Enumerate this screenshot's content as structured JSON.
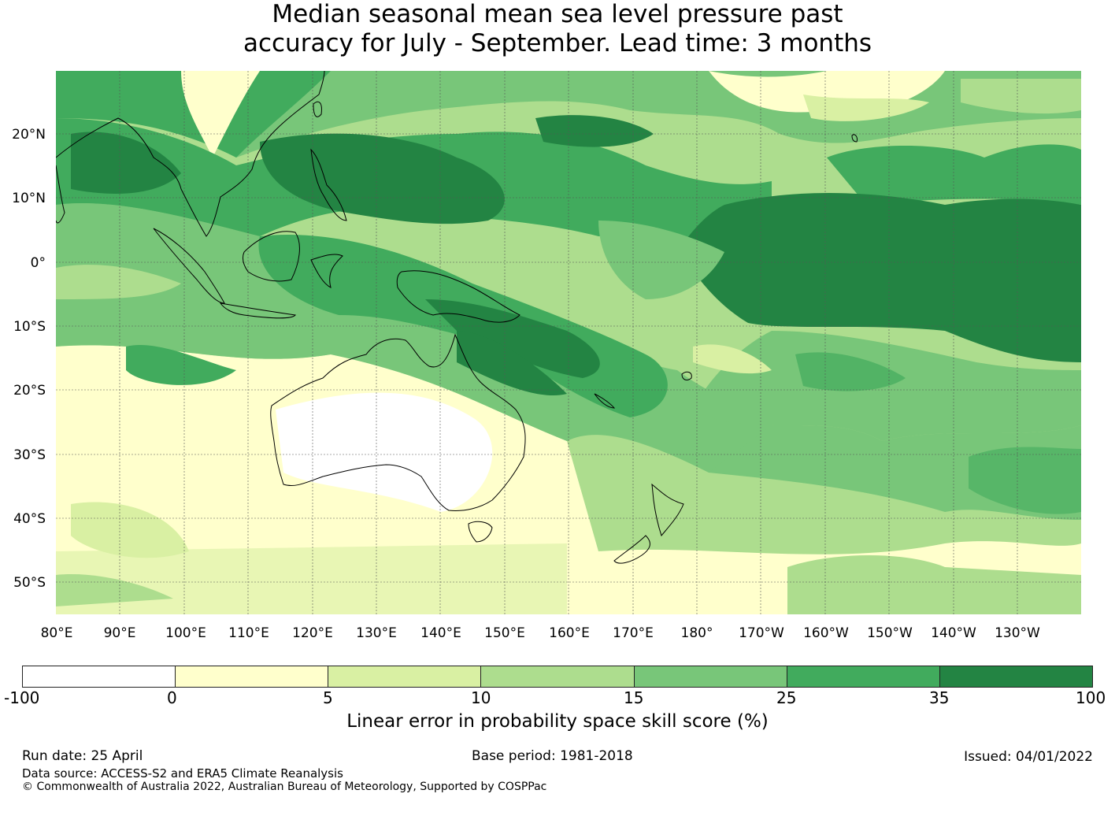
{
  "title_line1": "Median seasonal mean sea level pressure past",
  "title_line2": "accuracy for July - September. Lead time: 3 months",
  "map": {
    "lat_labels": [
      "20°N",
      "10°N",
      "0°",
      "10°S",
      "20°S",
      "30°S",
      "40°S",
      "50°S"
    ],
    "lon_labels": [
      "80°E",
      "90°E",
      "100°E",
      "110°E",
      "120°E",
      "130°E",
      "140°E",
      "150°E",
      "160°E",
      "170°E",
      "180°",
      "170°W",
      "160°W",
      "150°W",
      "140°W",
      "130°W"
    ]
  },
  "colorbar": {
    "label": "Linear error in probability space skill score (%)",
    "ticks": [
      "-100",
      "0",
      "5",
      "10",
      "15",
      "25",
      "35",
      "100"
    ],
    "colors": [
      "#ffffff",
      "#ffffcc",
      "#d9f0a3",
      "#addd8e",
      "#78c679",
      "#41ab5d",
      "#238443"
    ]
  },
  "footer": {
    "run_date": "Run date: 25 April",
    "base_period": "Base period: 1981-2018",
    "issued": "Issued: 04/01/2022",
    "data_source": "Data source: ACCESS-S2 and ERA5 Climate Reanalysis",
    "copyright": "© Commonwealth of Australia 2022, Australian Bureau of Meteorology, Supported by COSPPac"
  }
}
